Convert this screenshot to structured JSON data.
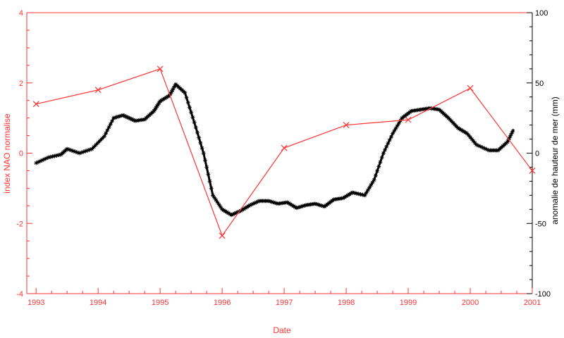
{
  "chart_data": {
    "type": "line",
    "xlabel": "Date",
    "ylabel_left": "index NAO normalise",
    "ylabel_right": "anomalie de hauteur de mer (mm)",
    "xlim": [
      1992.85,
      2001.0
    ],
    "ylim_left": [
      -4,
      4
    ],
    "ylim_right": [
      -100,
      100
    ],
    "x_ticks": [
      1993,
      1994,
      1995,
      1996,
      1997,
      1998,
      1999,
      2000,
      2001
    ],
    "y_left_ticks": [
      -4,
      -2,
      0,
      2,
      4
    ],
    "y_right_ticks": [
      -100,
      -50,
      0,
      50,
      100
    ],
    "colors": {
      "nao": "#ff3333",
      "sea_level": "#000000",
      "left_axis": "#ff3333",
      "right_axis": "#000000"
    },
    "grid": false,
    "legend": "none",
    "series": [
      {
        "axis": "left",
        "marker": "x",
        "x": [
          1993,
          1994,
          1995,
          1996,
          1997,
          1998,
          1999,
          2000,
          2001
        ],
        "values": [
          1.4,
          1.8,
          2.4,
          -2.35,
          0.15,
          0.8,
          0.95,
          1.85,
          -0.5
        ]
      },
      {
        "axis": "right",
        "marker": "star",
        "x": [
          1993.0,
          1993.2,
          1993.4,
          1993.5,
          1993.7,
          1993.9,
          1994.1,
          1994.25,
          1994.4,
          1994.5,
          1994.6,
          1994.75,
          1994.9,
          1995.0,
          1995.15,
          1995.25,
          1995.4,
          1995.55,
          1995.7,
          1995.85,
          1996.0,
          1996.15,
          1996.3,
          1996.45,
          1996.6,
          1996.75,
          1996.9,
          1997.05,
          1997.2,
          1997.35,
          1997.5,
          1997.65,
          1997.8,
          1997.95,
          1998.1,
          1998.3,
          1998.45,
          1998.6,
          1998.75,
          1998.9,
          1999.05,
          1999.2,
          1999.35,
          1999.5,
          1999.65,
          1999.8,
          1999.95,
          2000.1,
          2000.3,
          2000.45,
          2000.6,
          2000.7
        ],
        "values": [
          -7,
          -3,
          -1,
          3,
          0,
          3,
          12,
          25,
          27,
          25,
          23,
          24,
          30,
          37,
          41,
          49,
          43,
          22,
          0,
          -30,
          -40,
          -44,
          -41,
          -37,
          -34,
          -34,
          -36,
          -35,
          -39,
          -37,
          -36,
          -38,
          -33,
          -32,
          -28,
          -30,
          -19,
          0,
          14,
          25,
          30,
          31,
          32,
          31,
          25,
          18,
          14,
          6,
          2,
          2,
          8,
          17
        ]
      }
    ]
  }
}
